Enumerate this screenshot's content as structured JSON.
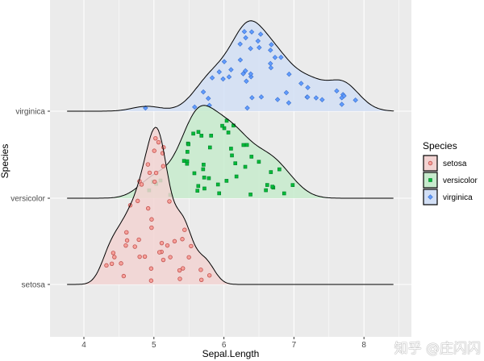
{
  "chart_data": {
    "type": "ridgeline-density-with-jittered-points",
    "xlabel": "Sepal.Length",
    "ylabel": "Species",
    "xlim": [
      3.52,
      8.68
    ],
    "xticks": [
      4,
      5,
      6,
      7,
      8
    ],
    "xtick_labels": [
      "4",
      "5",
      "6",
      "7",
      "8"
    ],
    "grid": true,
    "legend": {
      "title": "Species",
      "position": "right",
      "entries": [
        "setosa",
        "versicolor",
        "virginica"
      ]
    },
    "series": [
      {
        "name": "setosa",
        "fill": "#F8766D",
        "point_shape": "circle",
        "values": [
          5.1,
          4.9,
          4.7,
          4.6,
          5.0,
          5.4,
          4.6,
          5.0,
          4.4,
          4.9,
          5.4,
          4.8,
          4.8,
          4.3,
          5.8,
          5.7,
          5.4,
          5.1,
          5.7,
          5.1,
          5.4,
          5.1,
          4.6,
          5.1,
          4.8,
          5.0,
          5.0,
          5.2,
          5.2,
          4.7,
          4.8,
          5.4,
          5.2,
          5.5,
          4.9,
          5.0,
          5.5,
          4.9,
          4.4,
          5.1,
          5.0,
          4.5,
          4.4,
          5.0,
          5.1,
          4.8,
          5.1,
          4.6,
          5.3,
          5.0
        ]
      },
      {
        "name": "versicolor",
        "fill": "#00BA38",
        "point_shape": "square",
        "values": [
          7.0,
          6.4,
          6.9,
          5.5,
          6.5,
          5.7,
          6.3,
          4.9,
          6.6,
          5.2,
          5.0,
          5.9,
          6.0,
          6.1,
          5.6,
          6.7,
          5.6,
          5.8,
          6.2,
          5.6,
          5.9,
          6.1,
          6.3,
          6.1,
          6.4,
          6.6,
          6.8,
          6.7,
          6.0,
          5.7,
          5.5,
          5.5,
          5.8,
          6.0,
          5.4,
          6.0,
          6.7,
          6.3,
          5.6,
          5.5,
          5.5,
          6.1,
          5.8,
          5.0,
          5.6,
          5.7,
          5.7,
          6.2,
          5.1,
          5.7
        ]
      },
      {
        "name": "virginica",
        "fill": "#619CFF",
        "point_shape": "diamond",
        "values": [
          6.3,
          5.8,
          7.1,
          6.3,
          6.5,
          7.6,
          4.9,
          7.3,
          6.7,
          7.2,
          6.5,
          6.4,
          6.8,
          5.7,
          5.8,
          6.4,
          6.5,
          7.7,
          7.7,
          6.0,
          6.9,
          5.6,
          7.7,
          6.3,
          6.7,
          7.2,
          6.2,
          6.1,
          6.4,
          7.2,
          7.4,
          7.9,
          6.4,
          6.3,
          6.1,
          7.7,
          6.3,
          6.4,
          6.0,
          6.9,
          6.7,
          6.9,
          5.8,
          6.8,
          6.7,
          6.7,
          6.3,
          6.5,
          6.2,
          5.9
        ]
      }
    ]
  },
  "watermark": "知乎 @庄闪闪"
}
